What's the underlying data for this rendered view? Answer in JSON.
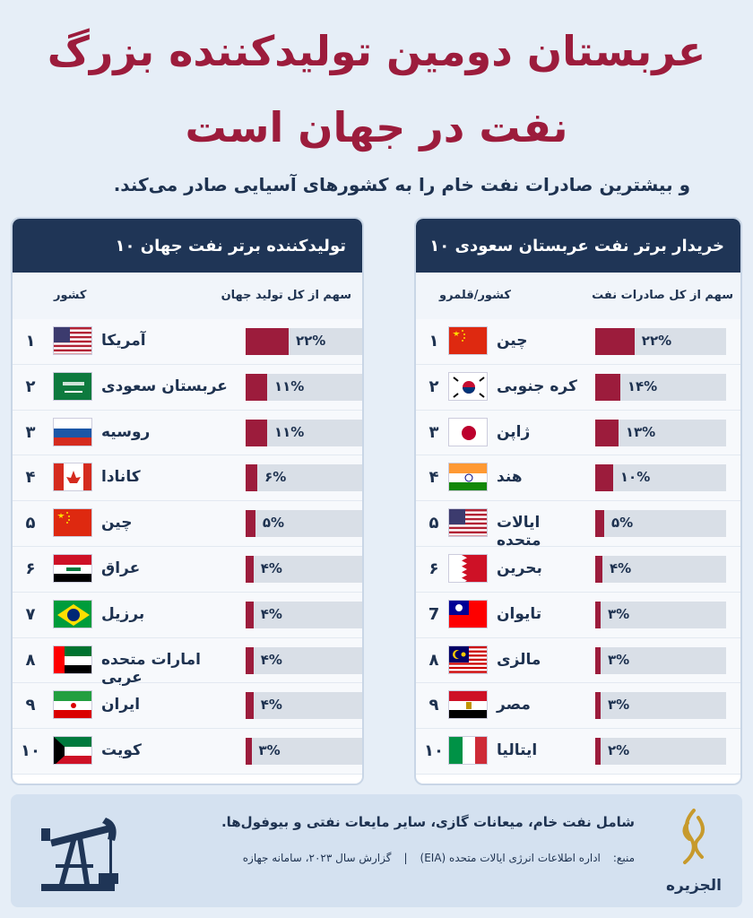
{
  "header": {
    "title_line1": "عربستان دومین تولیدکننده بزرگ",
    "title_line2": "نفت در جهان است",
    "subtitle": "و بیشترین صادرات نفت خام را به کشورهای آسیایی صادر می‌کند."
  },
  "chart_data": [
    {
      "type": "bar",
      "title": "۱۰ تولیدکننده برتر نفت جهان",
      "column_headers": {
        "country": "کشور",
        "share": "سهم از کل تولید جهان"
      },
      "ranks": [
        "۱",
        "۲",
        "۳",
        "۴",
        "۵",
        "۶",
        "۷",
        "۸",
        "۹",
        "۱۰"
      ],
      "categories": [
        "آمریکا",
        "عربستان سعودی",
        "روسیه",
        "کانادا",
        "چین",
        "عراق",
        "برزیل",
        "امارات متحده عربی",
        "ایران",
        "کویت"
      ],
      "values": [
        22,
        11,
        11,
        6,
        5,
        4,
        4,
        4,
        4,
        3
      ],
      "labels": [
        "۲۲%",
        "۱۱%",
        "۱۱%",
        "۶%",
        "۵%",
        "۴%",
        "۴%",
        "۴%",
        "۴%",
        "۳%"
      ],
      "flags": [
        "us",
        "sa",
        "ru",
        "ca",
        "cn",
        "iq",
        "br",
        "ae",
        "ir",
        "kw"
      ],
      "ylim": [
        0,
        100
      ]
    },
    {
      "type": "bar",
      "title": "۱۰ خریدار برتر نفت عربستان سعودی",
      "column_headers": {
        "country": "کشور/قلمرو",
        "share": "سهم از کل صادرات نفت"
      },
      "ranks": [
        "۱",
        "۲",
        "۳",
        "۴",
        "۵",
        "۶",
        "7",
        "۸",
        "۹",
        "۱۰"
      ],
      "categories": [
        "چین",
        "کره جنوبی",
        "ژاپن",
        "هند",
        "ایالات متحده",
        "بحرین",
        "تایوان",
        "مالزی",
        "مصر",
        "ایتالیا"
      ],
      "values": [
        22,
        14,
        13,
        10,
        5,
        4,
        3,
        3,
        3,
        2
      ],
      "labels": [
        "۲۲%",
        "۱۴%",
        "۱۳%",
        "۱۰%",
        "۵%",
        "۴%",
        "۳%",
        "۳%",
        "۳%",
        "۲%"
      ],
      "flags": [
        "cn",
        "kr",
        "jp",
        "in",
        "us",
        "bh",
        "tw",
        "my",
        "eg",
        "it"
      ],
      "ylim": [
        0,
        100
      ]
    }
  ],
  "footer": {
    "note": "شامل نفت خام، میعانات گازی، سایر مایعات نفتی و بیوفول‌ها.",
    "source_label": "منبع:",
    "source_1": "اداره اطلاعات انرژی ایالات متحده (EIA)",
    "source_sep": "|",
    "source_2": "گزارش سال ۲۰۲۳، سامانه جهاز‌ه",
    "logo_text": "الجزیره"
  },
  "colors": {
    "accent": "#9c1c3c",
    "header_bg": "#1f3556",
    "bar_bg": "#d9dfe7"
  }
}
